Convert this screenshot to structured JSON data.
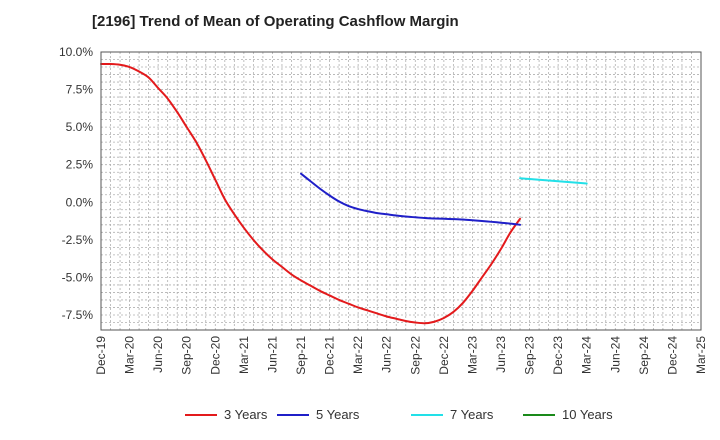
{
  "chart_data": {
    "type": "line",
    "title": "[2196]  Trend of Mean of Operating Cashflow Margin",
    "xlabel": "",
    "ylabel": "",
    "ylim": [
      -8.5,
      10.0
    ],
    "y_ticks": [
      10.0,
      7.5,
      5.0,
      2.5,
      0.0,
      -2.5,
      -5.0,
      -7.5
    ],
    "y_tick_labels": [
      "10.0%",
      "7.5%",
      "5.0%",
      "2.5%",
      "0.0%",
      "-2.5%",
      "-5.0%",
      "-7.5%"
    ],
    "x_tick_labels": [
      "Dec-19",
      "Mar-20",
      "Jun-20",
      "Sep-20",
      "Dec-20",
      "Mar-21",
      "Jun-21",
      "Sep-21",
      "Dec-21",
      "Mar-22",
      "Jun-22",
      "Sep-22",
      "Dec-22",
      "Mar-23",
      "Jun-23",
      "Sep-23",
      "Dec-23",
      "Mar-24",
      "Jun-24",
      "Sep-24",
      "Dec-24",
      "Mar-25"
    ],
    "x_unit": "month",
    "grid": true,
    "legend_position": "bottom",
    "series": [
      {
        "name": "3 Years",
        "color": "#e31a1c",
        "points": [
          [
            "Dec-19",
            9.2
          ],
          [
            "Jan-20",
            9.2
          ],
          [
            "Feb-20",
            9.15
          ],
          [
            "Mar-20",
            9.0
          ],
          [
            "Apr-20",
            8.7
          ],
          [
            "May-20",
            8.3
          ],
          [
            "Jun-20",
            7.6
          ],
          [
            "Jul-20",
            6.9
          ],
          [
            "Aug-20",
            6.0
          ],
          [
            "Sep-20",
            5.0
          ],
          [
            "Oct-20",
            4.0
          ],
          [
            "Nov-20",
            2.8
          ],
          [
            "Dec-20",
            1.5
          ],
          [
            "Jan-21",
            0.2
          ],
          [
            "Feb-21",
            -0.8
          ],
          [
            "Mar-21",
            -1.7
          ],
          [
            "Apr-21",
            -2.5
          ],
          [
            "May-21",
            -3.2
          ],
          [
            "Jun-21",
            -3.8
          ],
          [
            "Jul-21",
            -4.3
          ],
          [
            "Aug-21",
            -4.8
          ],
          [
            "Sep-21",
            -5.2
          ],
          [
            "Oct-21",
            -5.55
          ],
          [
            "Nov-21",
            -5.9
          ],
          [
            "Dec-21",
            -6.2
          ],
          [
            "Jan-22",
            -6.5
          ],
          [
            "Feb-22",
            -6.75
          ],
          [
            "Mar-22",
            -7.0
          ],
          [
            "Apr-22",
            -7.2
          ],
          [
            "May-22",
            -7.4
          ],
          [
            "Jun-22",
            -7.6
          ],
          [
            "Jul-22",
            -7.75
          ],
          [
            "Aug-22",
            -7.9
          ],
          [
            "Sep-22",
            -8.0
          ],
          [
            "Oct-22",
            -8.05
          ],
          [
            "Nov-22",
            -7.95
          ],
          [
            "Dec-22",
            -7.7
          ],
          [
            "Jan-23",
            -7.3
          ],
          [
            "Feb-23",
            -6.7
          ],
          [
            "Mar-23",
            -5.9
          ],
          [
            "Apr-23",
            -5.0
          ],
          [
            "May-23",
            -4.1
          ],
          [
            "Jun-23",
            -3.1
          ],
          [
            "Jul-23",
            -2.0
          ],
          [
            "Aug-23",
            -1.1
          ]
        ]
      },
      {
        "name": "5 Years",
        "color": "#1f1fc8",
        "points": [
          [
            "Sep-21",
            1.9
          ],
          [
            "Oct-21",
            1.4
          ],
          [
            "Nov-21",
            0.9
          ],
          [
            "Dec-21",
            0.45
          ],
          [
            "Jan-22",
            0.05
          ],
          [
            "Feb-22",
            -0.25
          ],
          [
            "Mar-22",
            -0.45
          ],
          [
            "Apr-22",
            -0.6
          ],
          [
            "May-22",
            -0.72
          ],
          [
            "Jun-22",
            -0.8
          ],
          [
            "Jul-22",
            -0.88
          ],
          [
            "Aug-22",
            -0.95
          ],
          [
            "Sep-22",
            -1.0
          ],
          [
            "Oct-22",
            -1.05
          ],
          [
            "Nov-22",
            -1.08
          ],
          [
            "Dec-22",
            -1.1
          ],
          [
            "Jan-23",
            -1.12
          ],
          [
            "Feb-23",
            -1.15
          ],
          [
            "Mar-23",
            -1.2
          ],
          [
            "Apr-23",
            -1.25
          ],
          [
            "May-23",
            -1.3
          ],
          [
            "Jun-23",
            -1.36
          ],
          [
            "Jul-23",
            -1.42
          ],
          [
            "Aug-23",
            -1.5
          ]
        ]
      },
      {
        "name": "7 Years",
        "color": "#22e0e8",
        "points": [
          [
            "Aug-23",
            1.6
          ],
          [
            "Sep-23",
            1.55
          ],
          [
            "Oct-23",
            1.5
          ],
          [
            "Nov-23",
            1.45
          ],
          [
            "Dec-23",
            1.4
          ],
          [
            "Jan-24",
            1.35
          ],
          [
            "Feb-24",
            1.3
          ],
          [
            "Mar-24",
            1.25
          ]
        ]
      },
      {
        "name": "10 Years",
        "color": "#1a8a1a",
        "points": []
      }
    ]
  }
}
